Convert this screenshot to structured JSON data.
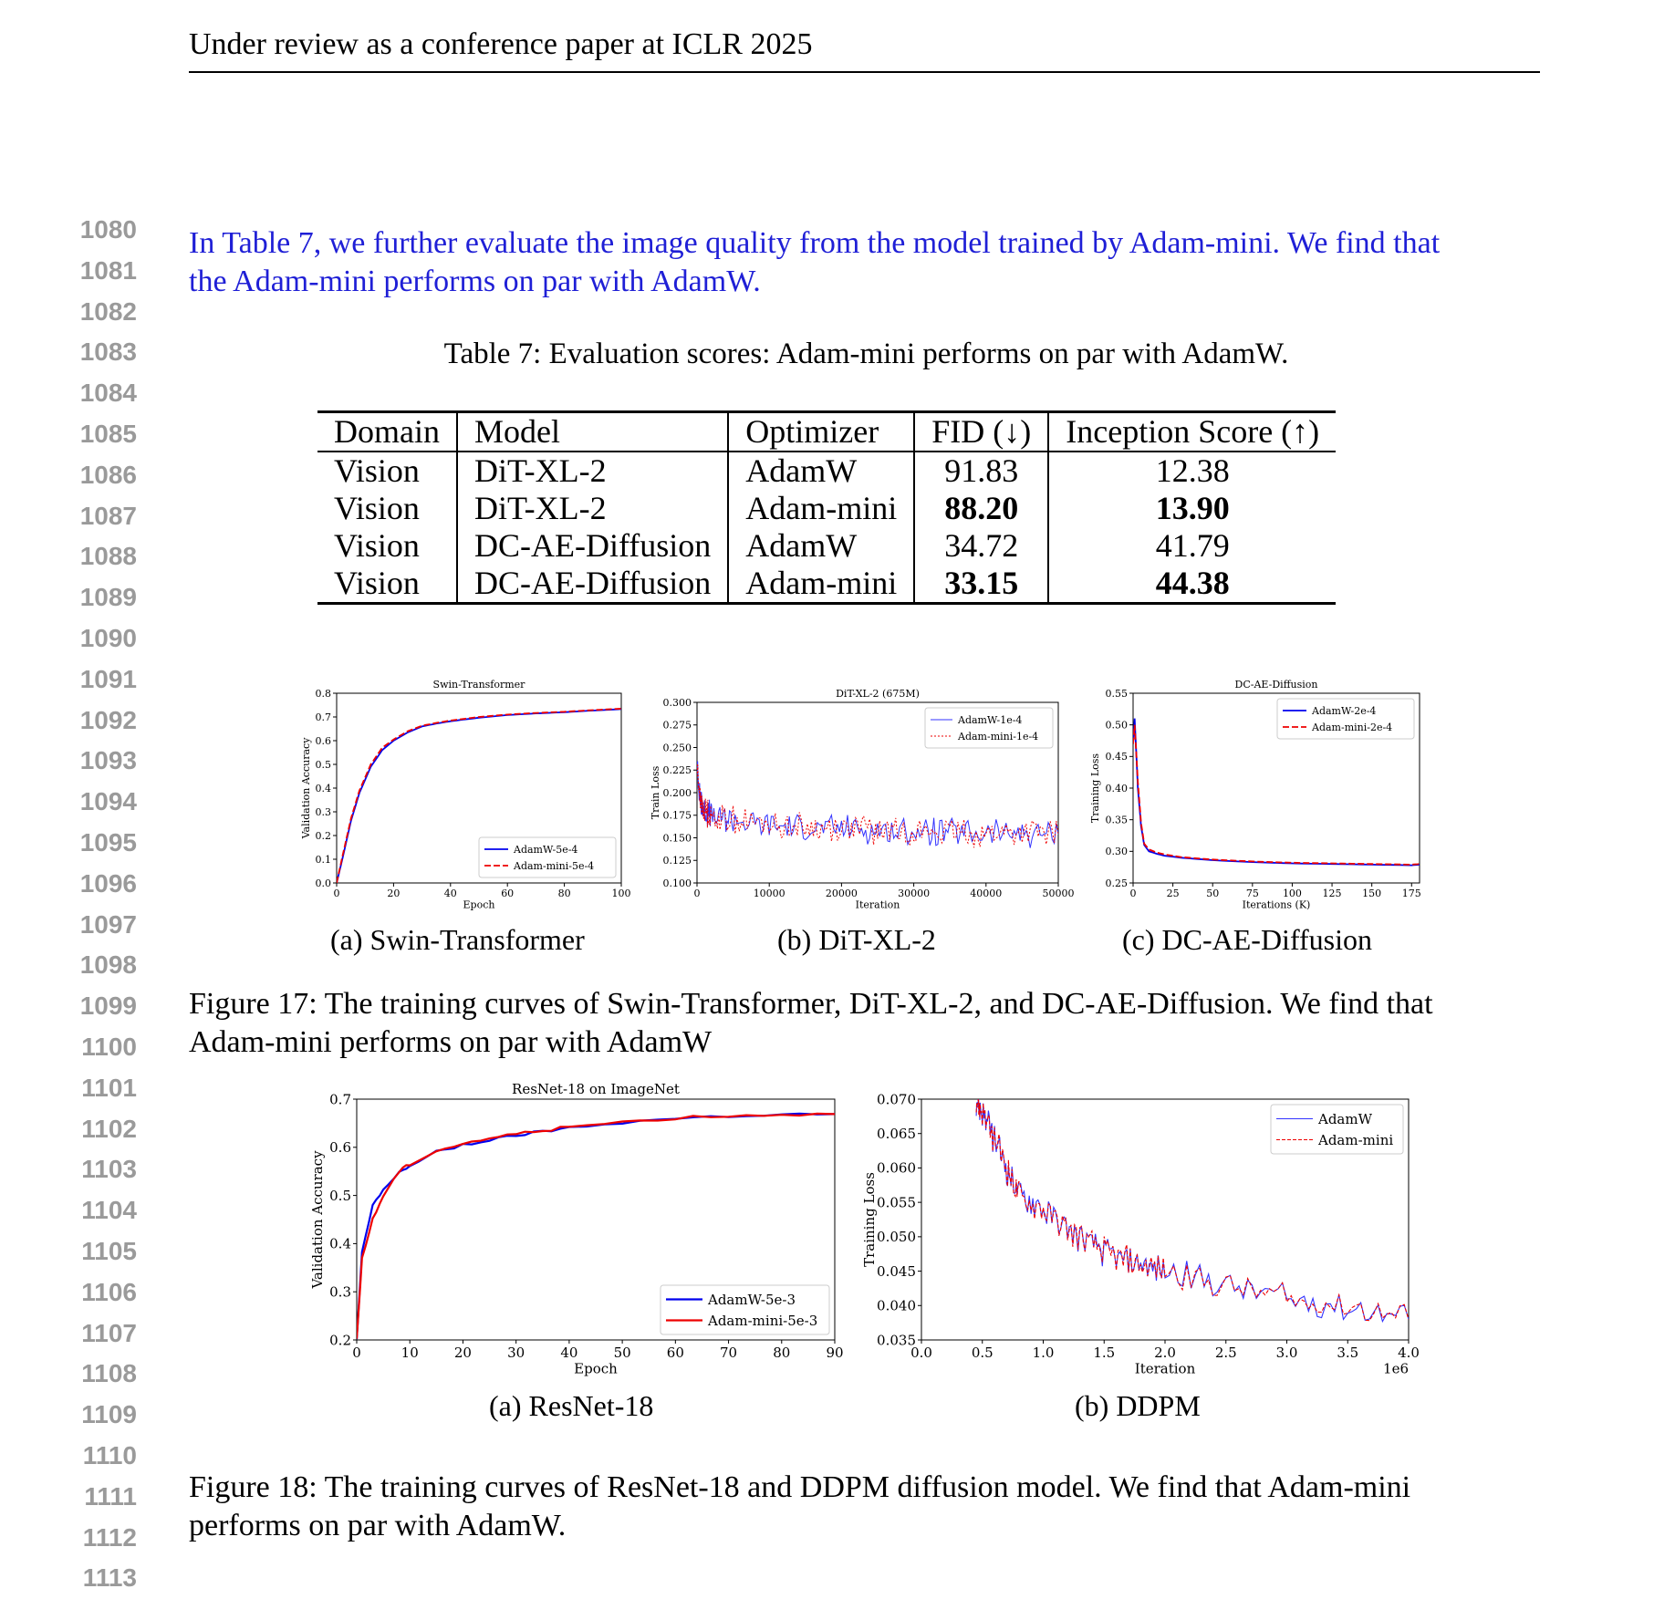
{
  "header": "Under review as a conference paper at ICLR 2025",
  "line_numbers": [
    "1080",
    "1081",
    "1082",
    "1083",
    "1084",
    "1085",
    "1086",
    "1087",
    "1088",
    "1089",
    "1090",
    "1091",
    "1092",
    "1093",
    "1094",
    "1095",
    "1096",
    "1097",
    "1098",
    "1099",
    "1100",
    "1101",
    "1102",
    "1103",
    "1104",
    "1105",
    "1106",
    "1107",
    "1108",
    "1109",
    "1110",
    "1111",
    "1112",
    "1113"
  ],
  "intro": {
    "line1": "In Table 7, we further evaluate the image quality from the model trained by Adam-mini. We find that",
    "line2": "the Adam-mini performs on par with AdamW."
  },
  "table7": {
    "caption": "Table 7: Evaluation scores: Adam-mini performs on par with AdamW.",
    "headers": [
      "Domain",
      "Model",
      "Optimizer",
      "FID (↓)",
      "Inception Score (↑)"
    ],
    "rows": [
      {
        "domain": "Vision",
        "model": "DiT-XL-2",
        "optimizer": "AdamW",
        "fid": "91.83",
        "is": "12.38",
        "bold": false
      },
      {
        "domain": "Vision",
        "model": "DiT-XL-2",
        "optimizer": "Adam-mini",
        "fid": "88.20",
        "is": "13.90",
        "bold": true
      },
      {
        "domain": "Vision",
        "model": "DC-AE-Diffusion",
        "optimizer": "AdamW",
        "fid": "34.72",
        "is": "41.79",
        "bold": false
      },
      {
        "domain": "Vision",
        "model": "DC-AE-Diffusion",
        "optimizer": "Adam-mini",
        "fid": "33.15",
        "is": "44.38",
        "bold": true
      }
    ]
  },
  "fig17": {
    "caption_line1": "Figure 17: The training curves of Swin-Transformer, DiT-XL-2, and DC-AE-Diffusion. We find that",
    "caption_line2": "Adam-mini performs on par with AdamW",
    "subcaptions": [
      "(a)  Swin-Transformer",
      "(b)  DiT-XL-2",
      "(c)  DC-AE-Diffusion"
    ]
  },
  "fig18": {
    "caption_line1": "Figure 18: The training curves of ResNet-18 and DDPM diffusion model. We find that Adam-mini",
    "caption_line2": "performs on par with AdamW.",
    "subcaptions": [
      "(a)  ResNet-18",
      "(b)  DDPM"
    ]
  },
  "chart_data": [
    {
      "id": "swin",
      "type": "line",
      "title": "Swin-Transformer",
      "xlabel": "Epoch",
      "ylabel": "Validation Accuracy",
      "xlim": [
        0,
        100
      ],
      "ylim": [
        0,
        0.8
      ],
      "xticks": [
        0,
        20,
        40,
        60,
        80,
        100
      ],
      "xtick_labels": [
        "0",
        "20",
        "40",
        "60",
        "80",
        "100"
      ],
      "yticks": [
        0,
        0.1,
        0.2,
        0.3,
        0.4,
        0.5,
        0.6,
        0.7,
        0.8
      ],
      "ytick_labels": [
        "0.0",
        "0.1",
        "0.2",
        "0.3",
        "0.4",
        "0.5",
        "0.6",
        "0.7",
        "0.8"
      ],
      "legend_position": "lower-right",
      "series": [
        {
          "name": "AdamW-5e-4",
          "color": "#0000ee",
          "dash": "solid",
          "x": [
            0,
            2,
            5,
            8,
            12,
            16,
            20,
            25,
            30,
            35,
            40,
            50,
            60,
            70,
            80,
            90,
            100
          ],
          "y": [
            0.0,
            0.1,
            0.26,
            0.38,
            0.49,
            0.56,
            0.6,
            0.635,
            0.66,
            0.672,
            0.682,
            0.697,
            0.708,
            0.715,
            0.72,
            0.727,
            0.733
          ]
        },
        {
          "name": "Adam-mini-5e-4",
          "color": "#ee0000",
          "dash": "dashed",
          "x": [
            0,
            2,
            5,
            8,
            12,
            16,
            20,
            25,
            30,
            35,
            40,
            50,
            60,
            70,
            80,
            90,
            100
          ],
          "y": [
            0.0,
            0.11,
            0.27,
            0.39,
            0.5,
            0.57,
            0.605,
            0.64,
            0.663,
            0.675,
            0.685,
            0.7,
            0.71,
            0.717,
            0.722,
            0.729,
            0.735
          ]
        }
      ]
    },
    {
      "id": "dit",
      "type": "line",
      "title": "DiT-XL-2 (675M)",
      "xlabel": "Iteration",
      "ylabel": "Train Loss",
      "xlim": [
        0,
        50000
      ],
      "ylim": [
        0.1,
        0.3
      ],
      "xticks": [
        0,
        10000,
        20000,
        30000,
        40000,
        50000
      ],
      "xtick_labels": [
        "0",
        "10000",
        "20000",
        "30000",
        "40000",
        "50000"
      ],
      "yticks": [
        0.1,
        0.125,
        0.15,
        0.175,
        0.2,
        0.225,
        0.25,
        0.275,
        0.3
      ],
      "ytick_labels": [
        "0.100",
        "0.125",
        "0.150",
        "0.175",
        "0.200",
        "0.225",
        "0.250",
        "0.275",
        "0.300"
      ],
      "legend_position": "upper-right",
      "series": [
        {
          "name": "AdamW-1e-4",
          "color": "#3333ff",
          "dash": "solid",
          "x": [
            0,
            500,
            1000,
            2000,
            5000,
            10000,
            15000,
            20000,
            25000,
            30000,
            35000,
            40000,
            45000,
            50000
          ],
          "y": [
            0.23,
            0.19,
            0.18,
            0.175,
            0.17,
            0.165,
            0.162,
            0.16,
            0.158,
            0.157,
            0.156,
            0.155,
            0.155,
            0.154
          ]
        },
        {
          "name": "Adam-mini-1e-4",
          "color": "#ee0000",
          "dash": "dotted",
          "x": [
            0,
            500,
            1000,
            2000,
            5000,
            10000,
            15000,
            20000,
            25000,
            30000,
            35000,
            40000,
            45000,
            50000
          ],
          "y": [
            0.23,
            0.19,
            0.18,
            0.175,
            0.17,
            0.165,
            0.162,
            0.16,
            0.158,
            0.157,
            0.156,
            0.155,
            0.155,
            0.154
          ]
        }
      ]
    },
    {
      "id": "dcae",
      "type": "line",
      "title": "DC-AE-Diffusion",
      "xlabel": "Iterations (K)",
      "ylabel": "Training Loss",
      "xlim": [
        0,
        180
      ],
      "ylim": [
        0.25,
        0.55
      ],
      "xticks": [
        0,
        25,
        50,
        75,
        100,
        125,
        150,
        175
      ],
      "xtick_labels": [
        "0",
        "25",
        "50",
        "75",
        "100",
        "125",
        "150",
        "175"
      ],
      "yticks": [
        0.25,
        0.3,
        0.35,
        0.4,
        0.45,
        0.5,
        0.55
      ],
      "ytick_labels": [
        "0.25",
        "0.30",
        "0.35",
        "0.40",
        "0.45",
        "0.50",
        "0.55"
      ],
      "legend_position": "upper-right",
      "series": [
        {
          "name": "AdamW-2e-4",
          "color": "#0000ee",
          "dash": "solid",
          "x": [
            0,
            1,
            3,
            5,
            7,
            10,
            15,
            20,
            30,
            50,
            75,
            100,
            125,
            150,
            175,
            180
          ],
          "y": [
            0.47,
            0.51,
            0.4,
            0.34,
            0.31,
            0.3,
            0.296,
            0.293,
            0.29,
            0.286,
            0.283,
            0.281,
            0.28,
            0.279,
            0.278,
            0.279
          ]
        },
        {
          "name": "Adam-mini-2e-4",
          "color": "#ee0000",
          "dash": "dashed",
          "x": [
            0,
            1,
            3,
            5,
            7,
            10,
            15,
            20,
            30,
            50,
            75,
            100,
            125,
            150,
            175,
            180
          ],
          "y": [
            0.47,
            0.5,
            0.41,
            0.345,
            0.312,
            0.303,
            0.298,
            0.295,
            0.291,
            0.287,
            0.284,
            0.282,
            0.281,
            0.28,
            0.279,
            0.28
          ]
        }
      ]
    },
    {
      "id": "resnet",
      "type": "line",
      "title": "ResNet-18 on ImageNet",
      "xlabel": "Epoch",
      "ylabel": "Validation Accuracy",
      "xlim": [
        0,
        90
      ],
      "ylim": [
        0.2,
        0.7
      ],
      "xticks": [
        0,
        10,
        20,
        30,
        40,
        50,
        60,
        70,
        80,
        90
      ],
      "xtick_labels": [
        "0",
        "10",
        "20",
        "30",
        "40",
        "50",
        "60",
        "70",
        "80",
        "90"
      ],
      "yticks": [
        0.2,
        0.3,
        0.4,
        0.5,
        0.6,
        0.7
      ],
      "ytick_labels": [
        "0.2",
        "0.3",
        "0.4",
        "0.5",
        "0.6",
        "0.7"
      ],
      "legend_position": "lower-right",
      "series": [
        {
          "name": "AdamW-5e-3",
          "color": "#0000ee",
          "dash": "solid",
          "x": [
            0,
            1,
            3,
            5,
            8,
            10,
            15,
            20,
            25,
            30,
            35,
            40,
            50,
            60,
            70,
            80,
            90
          ],
          "y": [
            0.2,
            0.38,
            0.48,
            0.51,
            0.55,
            0.56,
            0.59,
            0.605,
            0.615,
            0.625,
            0.632,
            0.64,
            0.652,
            0.66,
            0.665,
            0.668,
            0.669
          ]
        },
        {
          "name": "Adam-mini-5e-3",
          "color": "#ee0000",
          "dash": "solid",
          "x": [
            0,
            1,
            3,
            5,
            8,
            10,
            15,
            20,
            25,
            30,
            35,
            40,
            50,
            60,
            70,
            80,
            90
          ],
          "y": [
            0.2,
            0.37,
            0.45,
            0.5,
            0.55,
            0.565,
            0.592,
            0.608,
            0.618,
            0.628,
            0.635,
            0.642,
            0.653,
            0.661,
            0.666,
            0.668,
            0.669
          ]
        }
      ]
    },
    {
      "id": "ddpm",
      "type": "line",
      "title": "",
      "xlabel": "Iteration",
      "ylabel": "Training Loss",
      "x_multiplier_label": "1e6",
      "xlim": [
        0,
        4.0
      ],
      "ylim": [
        0.035,
        0.07
      ],
      "xticks": [
        0,
        0.5,
        1.0,
        1.5,
        2.0,
        2.5,
        3.0,
        3.5,
        4.0
      ],
      "xtick_labels": [
        "0.0",
        "0.5",
        "1.0",
        "1.5",
        "2.0",
        "2.5",
        "3.0",
        "3.5",
        "4.0"
      ],
      "yticks": [
        0.035,
        0.04,
        0.045,
        0.05,
        0.055,
        0.06,
        0.065,
        0.07
      ],
      "ytick_labels": [
        "0.035",
        "0.040",
        "0.045",
        "0.050",
        "0.055",
        "0.060",
        "0.065",
        "0.070"
      ],
      "legend_position": "upper-right",
      "series": [
        {
          "name": "AdamW",
          "color": "#3333ff",
          "dash": "solid",
          "x": [
            0.45,
            0.5,
            0.6,
            0.7,
            0.8,
            1.0,
            1.2,
            1.4,
            1.6,
            1.8,
            2.0,
            2.5,
            3.0,
            3.5,
            4.0
          ],
          "y": [
            0.07,
            0.068,
            0.064,
            0.06,
            0.056,
            0.054,
            0.051,
            0.049,
            0.047,
            0.046,
            0.045,
            0.043,
            0.041,
            0.04,
            0.038
          ]
        },
        {
          "name": "Adam-mini",
          "color": "#ee0000",
          "dash": "dashed",
          "x": [
            0.45,
            0.5,
            0.6,
            0.7,
            0.8,
            1.0,
            1.2,
            1.4,
            1.6,
            1.8,
            2.0,
            2.5,
            3.0,
            3.5,
            4.0
          ],
          "y": [
            0.07,
            0.068,
            0.064,
            0.06,
            0.056,
            0.054,
            0.051,
            0.049,
            0.047,
            0.046,
            0.045,
            0.043,
            0.041,
            0.04,
            0.038
          ]
        }
      ]
    }
  ]
}
